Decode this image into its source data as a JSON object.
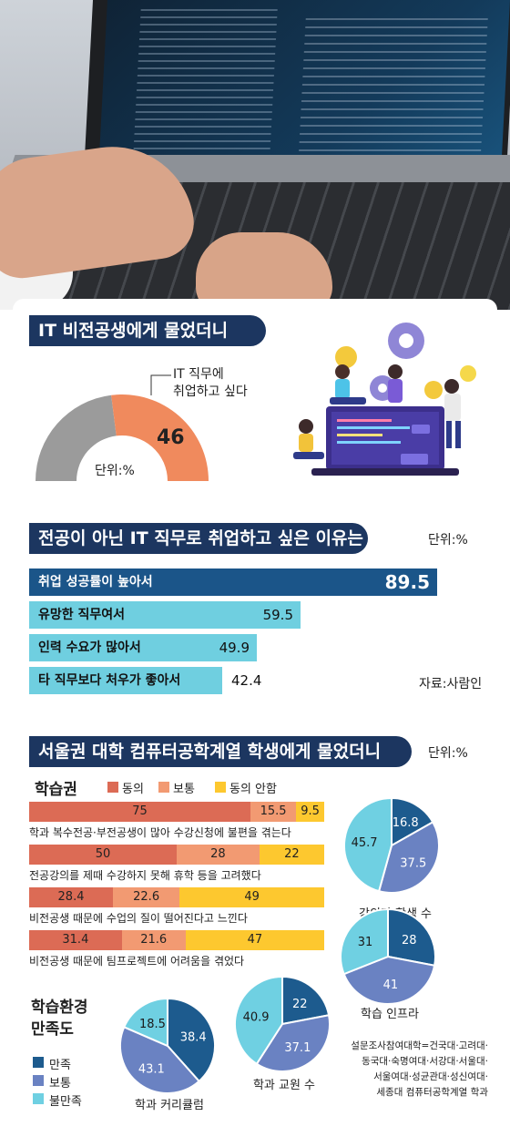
{
  "colors": {
    "navy": "#1c3660",
    "gray": "#9b9b9b",
    "orange": "#f08a5d",
    "cyan": "#6fcfe0",
    "dark_blue_bar": "#1b5589",
    "stack_red": "#dc6b55",
    "stack_salmon": "#f29a72",
    "stack_yellow": "#fdc82f",
    "pie_dark": "#1d5b8e",
    "pie_mid": "#6a82c2",
    "pie_light": "#6fd0e2"
  },
  "section1": {
    "title": "IT 비전공생에게 물었더니",
    "callout_line1": "IT 직무에",
    "callout_line2": "취업하고 싶다",
    "unit": "단위:%",
    "value_label": "46"
  },
  "section2": {
    "title": "전공이 아닌 IT 직무로 취업하고 싶은 이유는",
    "unit": "단위:%",
    "source": "자료:사람인"
  },
  "section3": {
    "title": "서울권 대학 컴퓨터공학계열 학생에게 물었더니",
    "unit": "단위:%",
    "subtitle": "학습권",
    "legend": [
      "동의",
      "보통",
      "동의 안함"
    ],
    "env_title_line1": "학습환경",
    "env_title_line2": "만족도",
    "env_legend": [
      "만족",
      "보통",
      "불만족"
    ],
    "note_lines": [
      "설문조사참여대학=건국대·고려대·",
      "동국대·숙명여대·서강대·서울대·",
      "서울여대·성균관대·성신여대·",
      "세종대 컴퓨터공학계열 학과"
    ]
  },
  "chart_data": [
    {
      "type": "pie",
      "title": "IT 비전공생에게 물었더니",
      "categories": [
        "IT 직무에 취업하고 싶다",
        ""
      ],
      "values": [
        46,
        54
      ],
      "shape": "half-donut"
    },
    {
      "type": "bar",
      "title": "전공이 아닌 IT 직무로 취업하고 싶은 이유는",
      "categories": [
        "취업 성공률이 높아서",
        "유망한 직무여서",
        "인력 수요가 많아서",
        "타 직무보다 처우가 좋아서"
      ],
      "values": [
        89.5,
        59.5,
        49.9,
        42.4
      ]
    },
    {
      "type": "bar",
      "stacked": true,
      "title": "학습권",
      "categories": [
        "학과 복수전공·부전공생이 많아 수강신청에 불편을 겪는다",
        "전공강의를 제때 수강하지 못해 휴학 등을 고려했다",
        "비전공생 때문에 수업의 질이 떨어진다고 느낀다",
        "비전공생 때문에 팀프로젝트에 어려움을 겪었다"
      ],
      "series": [
        {
          "name": "동의",
          "values": [
            75,
            50,
            28.4,
            31.4
          ]
        },
        {
          "name": "보통",
          "values": [
            15.5,
            28,
            22.6,
            21.6
          ]
        },
        {
          "name": "동의 안함",
          "values": [
            9.5,
            22,
            49,
            47
          ]
        }
      ]
    },
    {
      "type": "pie",
      "title": "강의당 학생 수",
      "categories": [
        "만족",
        "보통",
        "불만족"
      ],
      "values": [
        16.8,
        37.5,
        45.7
      ],
      "labels": [
        "16.8",
        "37.5",
        "45.7"
      ]
    },
    {
      "type": "pie",
      "title": "학습 인프라",
      "categories": [
        "만족",
        "보통",
        "불만족"
      ],
      "values": [
        28,
        41,
        31
      ],
      "labels": [
        "28",
        "41",
        "31"
      ]
    },
    {
      "type": "pie",
      "title": "학과 커리큘럼",
      "categories": [
        "만족",
        "보통",
        "불만족"
      ],
      "values": [
        38.4,
        43.1,
        18.5
      ],
      "labels": [
        "38.4",
        "43.1",
        "18.5"
      ]
    },
    {
      "type": "pie",
      "title": "학과 교원 수",
      "categories": [
        "만족",
        "보통",
        "불만족"
      ],
      "values": [
        22,
        37.1,
        40.9
      ],
      "labels": [
        "22",
        "37.1",
        "40.9"
      ]
    }
  ]
}
